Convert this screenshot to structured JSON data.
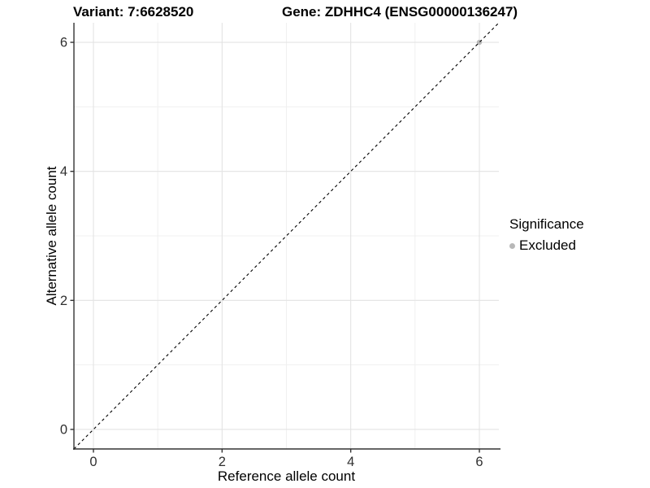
{
  "chart_data": {
    "type": "scatter",
    "title_left": "Variant: 7:6628520",
    "title_right": "Gene: ZDHHC4 (ENSG00000136247)",
    "xlabel": "Reference allele count",
    "ylabel": "Alternative allele count",
    "xlim": [
      -0.303,
      6.303
    ],
    "ylim": [
      -0.303,
      6.303
    ],
    "xticks": [
      0,
      2,
      4,
      6
    ],
    "yticks": [
      0,
      2,
      4,
      6
    ],
    "minor_xticks": [
      1,
      3,
      5
    ],
    "minor_yticks": [
      1,
      3,
      5
    ],
    "grid": "on",
    "series": [
      {
        "name": "Excluded",
        "marker": "circle",
        "color": "#b8b8b8",
        "points": [
          [
            6,
            6
          ]
        ]
      }
    ],
    "identity_line": {
      "style": "dashed",
      "x": [
        -0.303,
        6.303
      ],
      "y": [
        -0.303,
        6.303
      ],
      "color": "#000000"
    },
    "legend": {
      "position": "right",
      "title": "Significance",
      "items": [
        {
          "label": "Excluded",
          "color": "#b8b8b8",
          "marker": "circle"
        }
      ]
    }
  },
  "colors": {
    "background": "#ffffff",
    "grid_major": "#e3e3e3",
    "grid_minor": "#f0f0f0",
    "axis_line": "#333333",
    "tick_label": "#303030",
    "point": "#b8b8b8"
  }
}
